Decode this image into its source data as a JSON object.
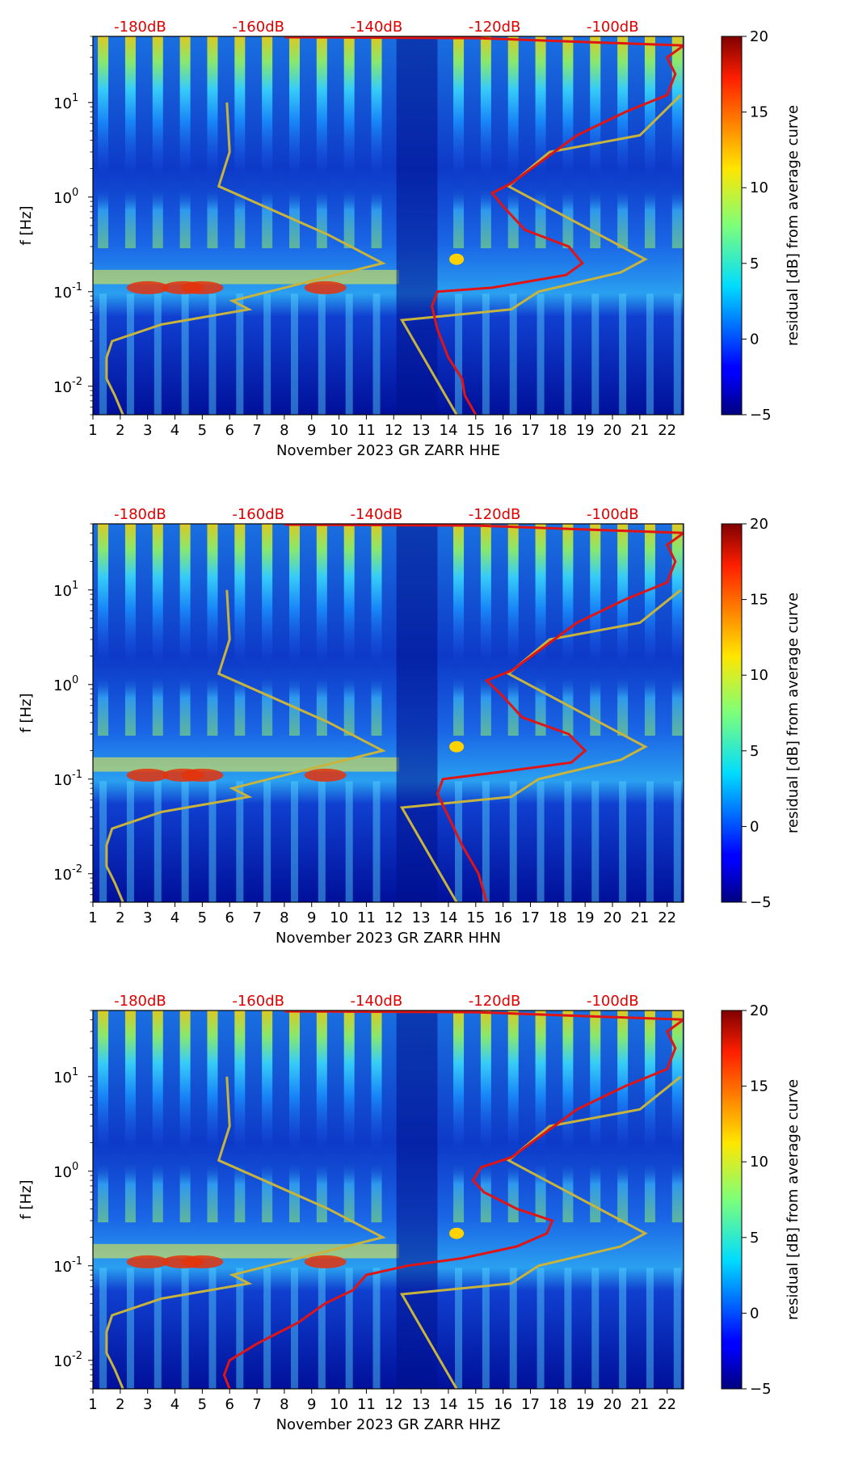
{
  "chart_data": [
    {
      "type": "heatmap",
      "id": "hhe",
      "xlabel": "November 2023 GR ZARR  HHE",
      "ylabel": "f [Hz]",
      "x_ticks": [
        "1",
        "2",
        "3",
        "4",
        "5",
        "6",
        "7",
        "8",
        "9",
        "10",
        "11",
        "12",
        "13",
        "14",
        "15",
        "16",
        "17",
        "18",
        "19",
        "20",
        "21",
        "22"
      ],
      "xlim": [
        1,
        22.6
      ],
      "ylim": [
        0.005,
        50
      ],
      "y_ticks": [
        {
          "exp": "-2",
          "value": 0.01
        },
        {
          "exp": "-1",
          "value": 0.1
        },
        {
          "exp": "0",
          "value": 1
        },
        {
          "exp": "1",
          "value": 10
        }
      ],
      "db_ticks": [
        {
          "label": "-180dB",
          "value": -180
        },
        {
          "label": "-160dB",
          "value": -160
        },
        {
          "label": "-140dB",
          "value": -140
        },
        {
          "label": "-120dB",
          "value": -120
        },
        {
          "label": "-100dB",
          "value": -100
        }
      ],
      "db_range": [
        -188,
        -88
      ],
      "colorbar": {
        "label": "residual [dB] from average curve",
        "ticks": [
          "20",
          "15",
          "10",
          "5",
          "0",
          "−5"
        ],
        "range": [
          -5,
          20
        ]
      },
      "yellow_curve": {
        "color": "#c8b43c",
        "points": [
          [
            2.1,
            0.005
          ],
          [
            1.8,
            0.008
          ],
          [
            1.5,
            0.012
          ],
          [
            1.5,
            0.02
          ],
          [
            1.7,
            0.03
          ],
          [
            3.5,
            0.045
          ],
          [
            6.7,
            0.065
          ],
          [
            6.1,
            0.08
          ],
          [
            11.6,
            0.2
          ],
          [
            9.6,
            0.4
          ],
          [
            5.6,
            1.3
          ],
          [
            6.0,
            3
          ],
          [
            5.9,
            10
          ]
        ]
      },
      "yellow_curve_right": {
        "color": "#c8b43c",
        "points": [
          [
            14.3,
            0.005
          ],
          [
            12.3,
            0.05
          ],
          [
            16.3,
            0.065
          ],
          [
            17.3,
            0.1
          ],
          [
            20.3,
            0.16
          ],
          [
            21.2,
            0.22
          ],
          [
            16.2,
            1.3
          ],
          [
            17.7,
            3
          ],
          [
            21.0,
            4.5
          ],
          [
            22.5,
            12
          ]
        ]
      },
      "red_curve": {
        "color": "#e01414",
        "points": [
          [
            15.0,
            0.005
          ],
          [
            14.6,
            0.008
          ],
          [
            14.5,
            0.012
          ],
          [
            14.0,
            0.02
          ],
          [
            13.6,
            0.04
          ],
          [
            13.4,
            0.07
          ],
          [
            13.6,
            0.1
          ],
          [
            15.6,
            0.11
          ],
          [
            18.3,
            0.15
          ],
          [
            18.9,
            0.2
          ],
          [
            18.4,
            0.3
          ],
          [
            16.8,
            0.45
          ],
          [
            16.0,
            0.8
          ],
          [
            15.6,
            1.1
          ],
          [
            16.3,
            1.4
          ],
          [
            17.5,
            2.5
          ],
          [
            18.7,
            4.5
          ],
          [
            20.5,
            8
          ],
          [
            22.0,
            12
          ],
          [
            22.3,
            20
          ],
          [
            22.0,
            30
          ],
          [
            22.6,
            40
          ],
          [
            15.0,
            48
          ],
          [
            8.0,
            49
          ]
        ]
      }
    },
    {
      "type": "heatmap",
      "id": "hhn",
      "xlabel": "November 2023 GR ZARR  HHN",
      "ylabel": "f [Hz]",
      "x_ticks": [
        "1",
        "2",
        "3",
        "4",
        "5",
        "6",
        "7",
        "8",
        "9",
        "10",
        "11",
        "12",
        "13",
        "14",
        "15",
        "16",
        "17",
        "18",
        "19",
        "20",
        "21",
        "22"
      ],
      "xlim": [
        1,
        22.6
      ],
      "ylim": [
        0.005,
        50
      ],
      "y_ticks": [
        {
          "exp": "-2",
          "value": 0.01
        },
        {
          "exp": "-1",
          "value": 0.1
        },
        {
          "exp": "0",
          "value": 1
        },
        {
          "exp": "1",
          "value": 10
        }
      ],
      "db_ticks": [
        {
          "label": "-180dB",
          "value": -180
        },
        {
          "label": "-160dB",
          "value": -160
        },
        {
          "label": "-140dB",
          "value": -140
        },
        {
          "label": "-120dB",
          "value": -120
        },
        {
          "label": "-100dB",
          "value": -100
        }
      ],
      "db_range": [
        -188,
        -88
      ],
      "colorbar": {
        "label": "residual [dB] from average curve",
        "ticks": [
          "20",
          "15",
          "10",
          "5",
          "0",
          "−5"
        ],
        "range": [
          -5,
          20
        ]
      },
      "yellow_curve": {
        "color": "#c8b43c",
        "points": [
          [
            2.1,
            0.005
          ],
          [
            1.8,
            0.008
          ],
          [
            1.5,
            0.012
          ],
          [
            1.5,
            0.02
          ],
          [
            1.7,
            0.03
          ],
          [
            3.5,
            0.045
          ],
          [
            6.7,
            0.065
          ],
          [
            6.1,
            0.08
          ],
          [
            11.6,
            0.2
          ],
          [
            9.6,
            0.4
          ],
          [
            5.6,
            1.3
          ],
          [
            6.0,
            3
          ],
          [
            5.9,
            10
          ]
        ]
      },
      "yellow_curve_right": {
        "color": "#c8b43c",
        "points": [
          [
            14.3,
            0.005
          ],
          [
            12.3,
            0.05
          ],
          [
            16.3,
            0.065
          ],
          [
            17.3,
            0.1
          ],
          [
            20.3,
            0.16
          ],
          [
            21.2,
            0.22
          ],
          [
            16.2,
            1.3
          ],
          [
            17.7,
            3
          ],
          [
            21.0,
            4.5
          ],
          [
            22.5,
            10
          ]
        ]
      },
      "red_curve": {
        "color": "#e01414",
        "points": [
          [
            15.4,
            0.005
          ],
          [
            15.1,
            0.01
          ],
          [
            14.5,
            0.02
          ],
          [
            14.0,
            0.04
          ],
          [
            13.6,
            0.07
          ],
          [
            13.8,
            0.1
          ],
          [
            16.0,
            0.12
          ],
          [
            18.5,
            0.15
          ],
          [
            19.0,
            0.2
          ],
          [
            18.4,
            0.3
          ],
          [
            16.7,
            0.45
          ],
          [
            15.9,
            0.8
          ],
          [
            15.4,
            1.1
          ],
          [
            16.3,
            1.4
          ],
          [
            17.5,
            2.5
          ],
          [
            18.7,
            4.5
          ],
          [
            20.5,
            8
          ],
          [
            22.0,
            12
          ],
          [
            22.3,
            20
          ],
          [
            22.0,
            30
          ],
          [
            22.6,
            40
          ],
          [
            15.0,
            48
          ],
          [
            8.0,
            49
          ]
        ]
      }
    },
    {
      "type": "heatmap",
      "id": "hhz",
      "xlabel": "November 2023 GR ZARR  HHZ",
      "ylabel": "f [Hz]",
      "x_ticks": [
        "1",
        "2",
        "3",
        "4",
        "5",
        "6",
        "7",
        "8",
        "9",
        "10",
        "11",
        "12",
        "13",
        "14",
        "15",
        "16",
        "17",
        "18",
        "19",
        "20",
        "21",
        "22"
      ],
      "xlim": [
        1,
        22.6
      ],
      "ylim": [
        0.005,
        50
      ],
      "y_ticks": [
        {
          "exp": "-2",
          "value": 0.01
        },
        {
          "exp": "-1",
          "value": 0.1
        },
        {
          "exp": "0",
          "value": 1
        },
        {
          "exp": "1",
          "value": 10
        }
      ],
      "db_ticks": [
        {
          "label": "-180dB",
          "value": -180
        },
        {
          "label": "-160dB",
          "value": -160
        },
        {
          "label": "-140dB",
          "value": -140
        },
        {
          "label": "-120dB",
          "value": -120
        },
        {
          "label": "-100dB",
          "value": -100
        }
      ],
      "db_range": [
        -188,
        -88
      ],
      "colorbar": {
        "label": "residual [dB] from average curve",
        "ticks": [
          "20",
          "15",
          "10",
          "5",
          "0",
          "−5"
        ],
        "range": [
          -5,
          20
        ]
      },
      "yellow_curve": {
        "color": "#c8b43c",
        "points": [
          [
            2.1,
            0.005
          ],
          [
            1.8,
            0.008
          ],
          [
            1.5,
            0.012
          ],
          [
            1.5,
            0.02
          ],
          [
            1.7,
            0.03
          ],
          [
            3.5,
            0.045
          ],
          [
            6.7,
            0.065
          ],
          [
            6.1,
            0.08
          ],
          [
            11.6,
            0.2
          ],
          [
            9.6,
            0.4
          ],
          [
            5.6,
            1.3
          ],
          [
            6.0,
            3
          ],
          [
            5.9,
            10
          ]
        ]
      },
      "yellow_curve_right": {
        "color": "#c8b43c",
        "points": [
          [
            14.3,
            0.005
          ],
          [
            12.3,
            0.05
          ],
          [
            16.3,
            0.065
          ],
          [
            17.3,
            0.1
          ],
          [
            20.3,
            0.16
          ],
          [
            21.2,
            0.22
          ],
          [
            16.2,
            1.3
          ],
          [
            17.7,
            3
          ],
          [
            21.0,
            4.5
          ],
          [
            22.5,
            10
          ]
        ]
      },
      "red_curve": {
        "color": "#e01414",
        "points": [
          [
            6.0,
            0.005
          ],
          [
            5.8,
            0.007
          ],
          [
            6.0,
            0.01
          ],
          [
            7.0,
            0.015
          ],
          [
            8.5,
            0.025
          ],
          [
            9.5,
            0.04
          ],
          [
            10.5,
            0.055
          ],
          [
            11.0,
            0.08
          ],
          [
            12.5,
            0.1
          ],
          [
            14.5,
            0.12
          ],
          [
            16.5,
            0.16
          ],
          [
            17.6,
            0.22
          ],
          [
            17.8,
            0.3
          ],
          [
            16.5,
            0.4
          ],
          [
            15.3,
            0.6
          ],
          [
            14.9,
            0.8
          ],
          [
            15.2,
            1.1
          ],
          [
            16.3,
            1.4
          ],
          [
            17.5,
            2.5
          ],
          [
            18.7,
            4.5
          ],
          [
            20.5,
            8
          ],
          [
            22.0,
            12
          ],
          [
            22.3,
            20
          ],
          [
            22.0,
            30
          ],
          [
            22.6,
            40
          ],
          [
            15.0,
            48
          ],
          [
            8.0,
            49
          ]
        ]
      }
    }
  ]
}
